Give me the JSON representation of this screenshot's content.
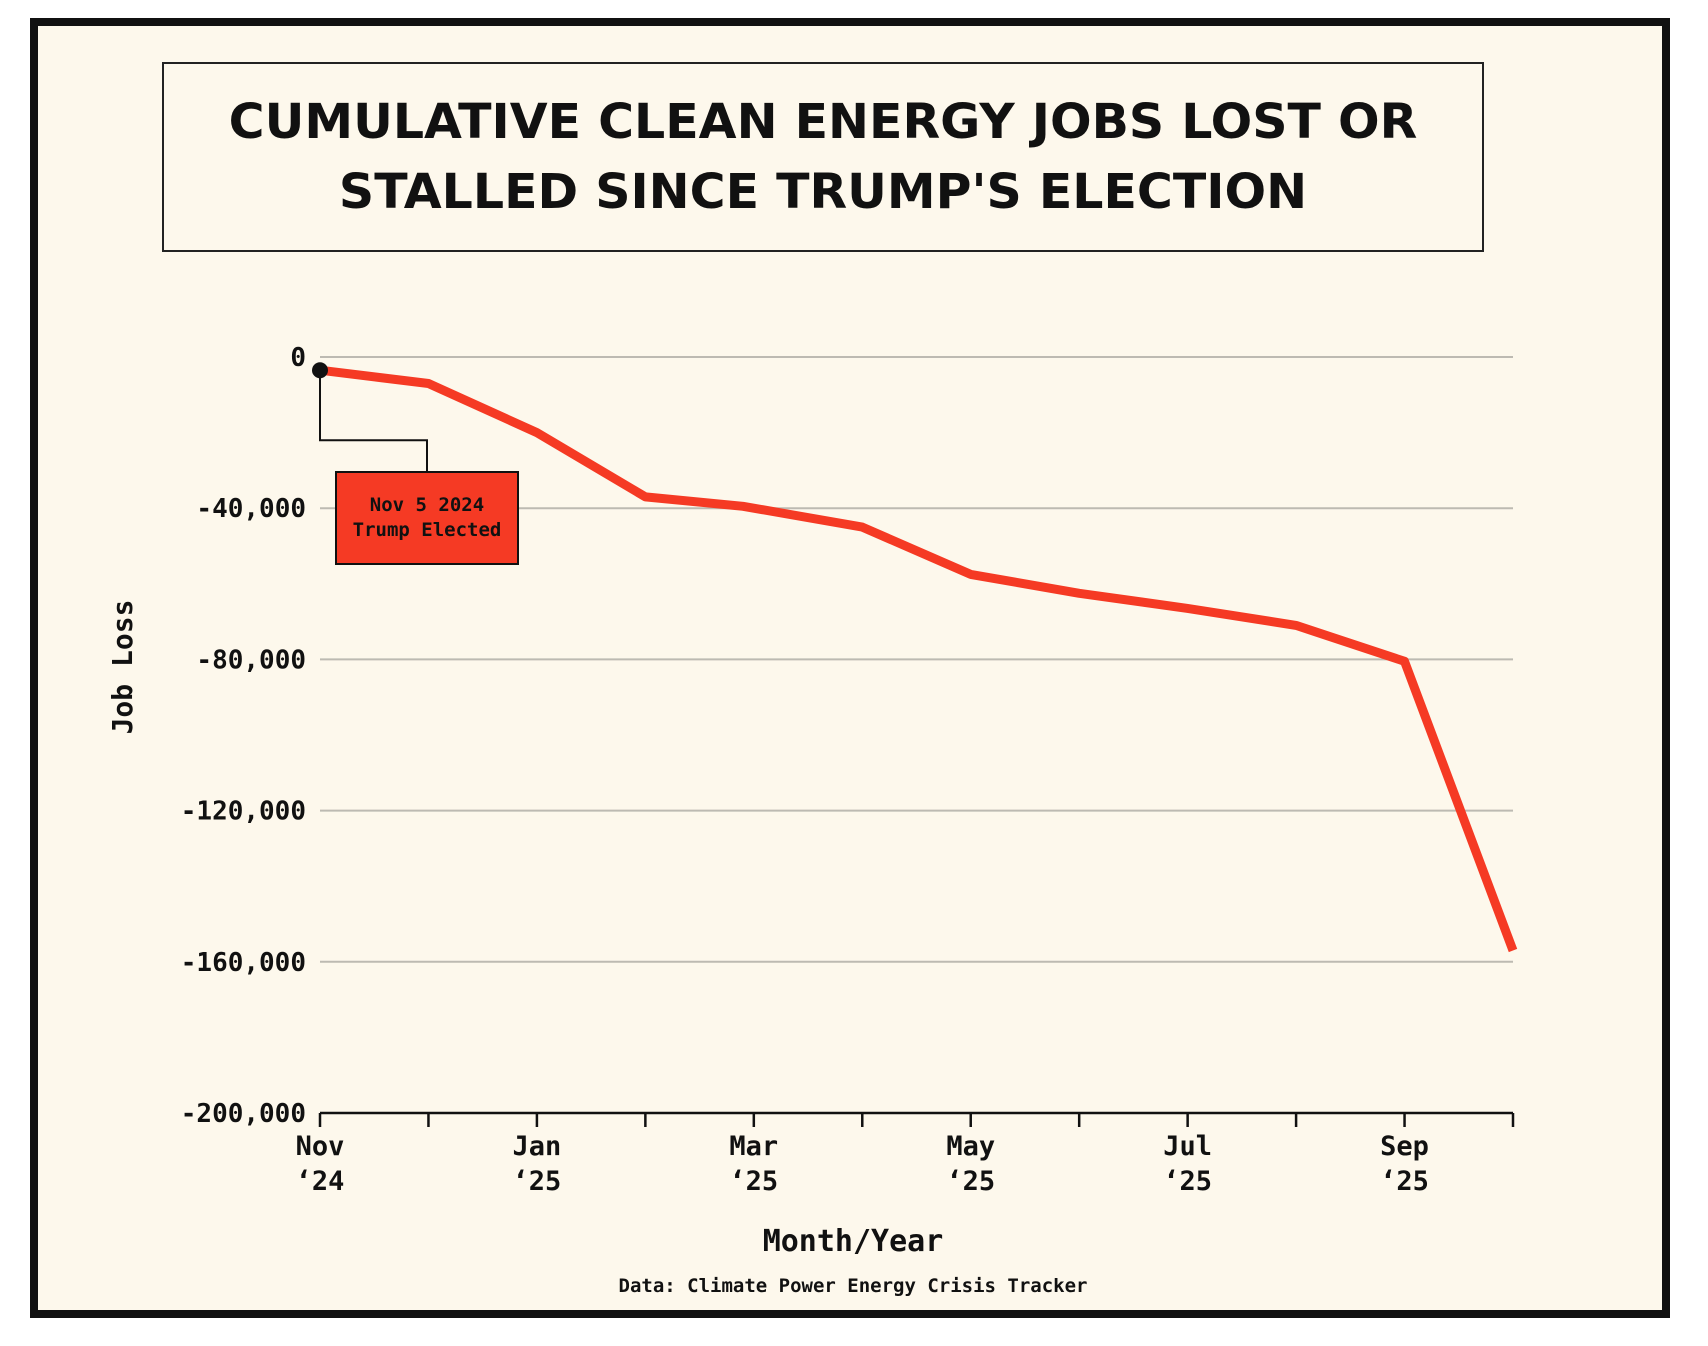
{
  "chart_data": {
    "type": "line",
    "title": "CUMULATIVE CLEAN ENERGY JOBS LOST OR STALLED SINCE TRUMP'S ELECTION",
    "xlabel": "Month/Year",
    "ylabel": "Job Loss",
    "source": "Data: Climate Power Energy Crisis Tracker",
    "ylim": [
      -200000,
      0
    ],
    "yticks": [
      0,
      -40000,
      -80000,
      -120000,
      -160000,
      -200000
    ],
    "ytick_labels": [
      "0",
      "-40,000",
      "-80,000",
      "-120,000",
      "-160,000",
      "-200,000"
    ],
    "x_index_range": [
      0,
      11
    ],
    "xticks": [
      {
        "index": 0,
        "month": "Nov",
        "year": "‘24"
      },
      {
        "index": 1,
        "month": "",
        "year": ""
      },
      {
        "index": 2,
        "month": "Jan",
        "year": "‘25"
      },
      {
        "index": 3,
        "month": "",
        "year": ""
      },
      {
        "index": 4,
        "month": "Mar",
        "year": "‘25"
      },
      {
        "index": 5,
        "month": "",
        "year": ""
      },
      {
        "index": 6,
        "month": "May",
        "year": "‘25"
      },
      {
        "index": 7,
        "month": "",
        "year": ""
      },
      {
        "index": 8,
        "month": "Jul",
        "year": "‘25"
      },
      {
        "index": 9,
        "month": "",
        "year": ""
      },
      {
        "index": 10,
        "month": "Sep",
        "year": "‘25"
      },
      {
        "index": 11,
        "month": "",
        "year": ""
      }
    ],
    "series": [
      {
        "name": "Cumulative clean energy jobs lost or stalled",
        "color": "#f53a24",
        "x": [
          0,
          1,
          2,
          3,
          3.9,
          5,
          6,
          7,
          8,
          9,
          10,
          11
        ],
        "y": [
          -3500,
          -7000,
          -20000,
          -37000,
          -39500,
          -45000,
          -57500,
          -62500,
          -66500,
          -71000,
          -80500,
          -157000
        ]
      }
    ],
    "annotation": {
      "x": 0,
      "y": -3500,
      "line1": "Nov 5 2024",
      "line2": "Trump Elected",
      "box_color": "#f53a24"
    },
    "colors": {
      "line": "#f53a24",
      "grid": "#bdbab2",
      "background": "#fdf8ec",
      "text": "#111111"
    }
  }
}
